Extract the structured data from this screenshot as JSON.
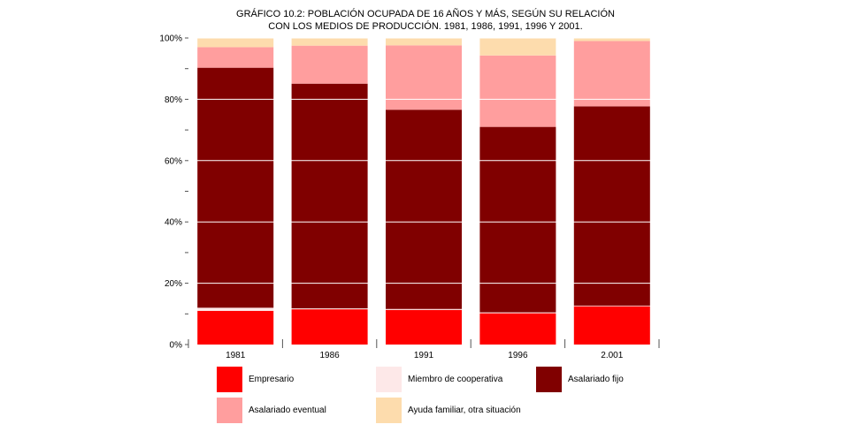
{
  "chart_data": {
    "type": "bar",
    "stacked": true,
    "percent": true,
    "title_lines": [
      "GRÁFICO 10.2: POBLACIÓN OCUPADA DE 16 AÑOS Y MÁS, SEGÚN SU RELACIÓN",
      "CON LOS MEDIOS DE PRODUCCIÓN. 1981, 1986, 1991, 1996 Y 2001."
    ],
    "categories": [
      "1981",
      "1986",
      "1991",
      "1996",
      "2.001"
    ],
    "y_ticks": [
      "0%",
      "20%",
      "40%",
      "60%",
      "80%",
      "100%"
    ],
    "ylim": [
      0,
      100
    ],
    "grid": true,
    "legend_position": "bottom",
    "series": [
      {
        "name": "Empresario",
        "color": "#ff0000",
        "values": [
          11.0,
          11.5,
          11.3,
          10.2,
          12.5
        ]
      },
      {
        "name": "Miembro de cooperativa",
        "color": "#fde8e8",
        "values": [
          1.0,
          0.3,
          0.3,
          0.3,
          0.2
        ]
      },
      {
        "name": "Asalariado fijo",
        "color": "#800000",
        "values": [
          78.3,
          73.3,
          65.0,
          60.5,
          65.0
        ]
      },
      {
        "name": "Asalariado eventual",
        "color": "#ff9e9e",
        "values": [
          6.7,
          12.4,
          21.0,
          23.3,
          21.3
        ]
      },
      {
        "name": "Ayuda familiar, otra situación",
        "color": "#fddcad",
        "values": [
          3.0,
          2.5,
          2.4,
          5.7,
          1.0
        ]
      }
    ]
  }
}
